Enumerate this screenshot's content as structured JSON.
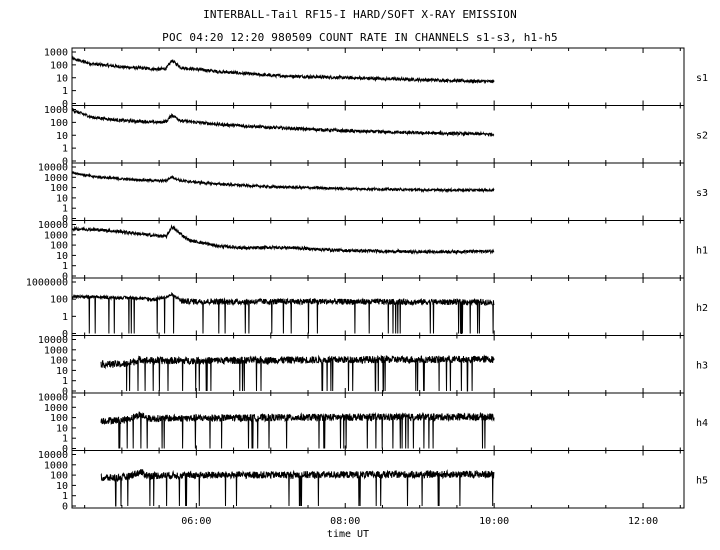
{
  "chart_data": {
    "type": "line",
    "title": "INTERBALL-Tail RF15-I HARD/SOFT X-RAY EMISSION",
    "subtitle": "POC 04:20 12:20 980509  COUNT RATE IN CHANNELS s1-s3, h1-h5",
    "xlabel": "time UT",
    "x_tick_labels": [
      "06:00",
      "08:00",
      "10:00",
      "12:00"
    ],
    "x_tick_hours": [
      6,
      8,
      10,
      12
    ],
    "xlim_hours": [
      4.33,
      12.55
    ],
    "data_end_hour": 10.0,
    "y_scale": "log",
    "grid": false,
    "line_color": "#000000",
    "panels": [
      {
        "name": "s1",
        "tick_labels": [
          "1000",
          "100",
          "10",
          "1",
          "0"
        ],
        "points": [
          [
            4.33,
            300
          ],
          [
            4.6,
            120
          ],
          [
            5.0,
            70
          ],
          [
            5.5,
            45
          ],
          [
            5.6,
            55
          ],
          [
            5.67,
            220
          ],
          [
            5.8,
            60
          ],
          [
            6.3,
            30
          ],
          [
            7.0,
            15
          ],
          [
            8.0,
            10
          ],
          [
            9.0,
            7
          ],
          [
            10.0,
            5
          ]
        ]
      },
      {
        "name": "s2",
        "tick_labels": [
          "1000",
          "100",
          "10",
          "1",
          "0"
        ],
        "points": [
          [
            4.33,
            900
          ],
          [
            4.6,
            250
          ],
          [
            5.0,
            140
          ],
          [
            5.5,
            100
          ],
          [
            5.6,
            120
          ],
          [
            5.67,
            380
          ],
          [
            5.8,
            130
          ],
          [
            6.3,
            70
          ],
          [
            7.0,
            40
          ],
          [
            8.0,
            22
          ],
          [
            9.0,
            15
          ],
          [
            10.0,
            12
          ]
        ]
      },
      {
        "name": "s3",
        "tick_labels": [
          "10000",
          "1000",
          "100",
          "10",
          "1",
          "0"
        ],
        "points": [
          [
            4.33,
            3000
          ],
          [
            4.6,
            1200
          ],
          [
            5.0,
            700
          ],
          [
            5.5,
            450
          ],
          [
            5.6,
            500
          ],
          [
            5.67,
            1100
          ],
          [
            5.8,
            450
          ],
          [
            6.3,
            220
          ],
          [
            7.0,
            120
          ],
          [
            8.0,
            80
          ],
          [
            9.0,
            60
          ],
          [
            10.0,
            55
          ]
        ]
      },
      {
        "name": "h1",
        "tick_labels": [
          "10000",
          "1000",
          "100",
          "10",
          "1",
          "0"
        ],
        "points": [
          [
            4.33,
            4000
          ],
          [
            4.7,
            3000
          ],
          [
            5.0,
            2000
          ],
          [
            5.4,
            900
          ],
          [
            5.6,
            700
          ],
          [
            5.67,
            6000
          ],
          [
            5.75,
            2000
          ],
          [
            5.9,
            300
          ],
          [
            6.3,
            80
          ],
          [
            6.7,
            50
          ],
          [
            7.0,
            60
          ],
          [
            7.3,
            55
          ],
          [
            7.6,
            40
          ],
          [
            8.0,
            30
          ],
          [
            9.0,
            22
          ],
          [
            10.0,
            25
          ]
        ]
      },
      {
        "name": "h2",
        "tick_labels": [
          "1000000",
          "100",
          "1",
          "0"
        ],
        "points": [
          [
            4.33,
            400
          ],
          [
            4.8,
            250
          ],
          [
            5.2,
            200
          ],
          [
            5.4,
            100
          ],
          [
            5.6,
            300
          ],
          [
            5.67,
            1200
          ],
          [
            5.8,
            60
          ],
          [
            6.5,
            50
          ],
          [
            7.5,
            55
          ],
          [
            8.5,
            50
          ],
          [
            10.0,
            45
          ]
        ]
      },
      {
        "name": "h3",
        "tick_labels": [
          "10000",
          "1000",
          "100",
          "10",
          "1",
          "0"
        ],
        "points": [
          [
            4.72,
            40
          ],
          [
            5.05,
            40
          ],
          [
            5.25,
            120
          ],
          [
            5.35,
            90
          ],
          [
            6.0,
            90
          ],
          [
            7.0,
            100
          ],
          [
            8.0,
            110
          ],
          [
            9.0,
            115
          ],
          [
            10.0,
            120
          ]
        ]
      },
      {
        "name": "h4",
        "tick_labels": [
          "10000",
          "1000",
          "100",
          "10",
          "1",
          "0"
        ],
        "points": [
          [
            4.72,
            50
          ],
          [
            5.05,
            60
          ],
          [
            5.25,
            200
          ],
          [
            5.35,
            80
          ],
          [
            6.0,
            90
          ],
          [
            7.0,
            100
          ],
          [
            8.0,
            110
          ],
          [
            9.0,
            115
          ],
          [
            10.0,
            120
          ]
        ]
      },
      {
        "name": "h5",
        "tick_labels": [
          "10000",
          "1000",
          "100",
          "10",
          "1",
          "0"
        ],
        "points": [
          [
            4.72,
            50
          ],
          [
            5.05,
            60
          ],
          [
            5.25,
            200
          ],
          [
            5.35,
            90
          ],
          [
            6.0,
            100
          ],
          [
            7.0,
            105
          ],
          [
            8.0,
            110
          ],
          [
            9.0,
            115
          ],
          [
            10.0,
            120
          ]
        ]
      }
    ]
  }
}
